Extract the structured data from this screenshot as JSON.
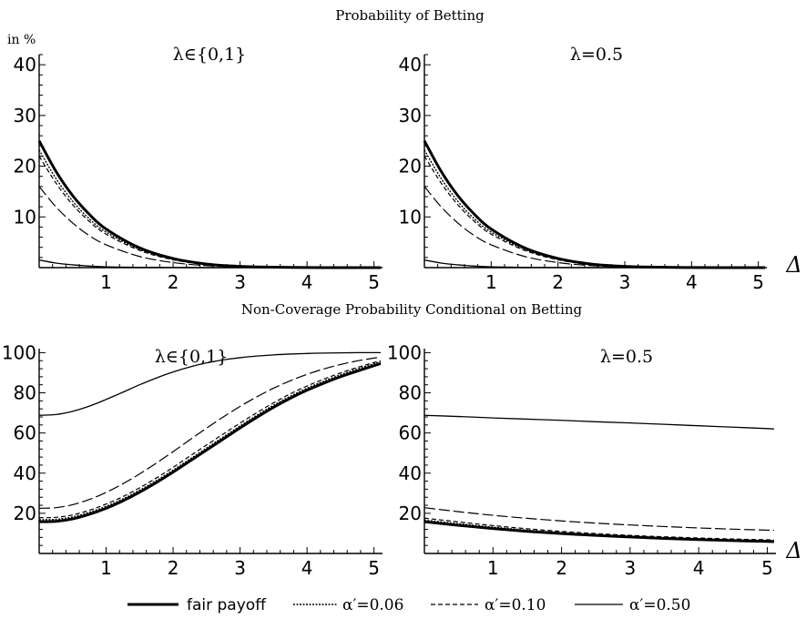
{
  "top_section_title": "Probability of Betting",
  "bottom_section_title": "Non-Coverage Probability Conditional on Betting",
  "y_unit_label": "in %",
  "x_axis_variable": "Δ",
  "legend": [
    {
      "label": "fair payoff",
      "style": "thick"
    },
    {
      "label": "α′=0.06",
      "style": "dotted"
    },
    {
      "label": "α′=0.10",
      "style": "dashed"
    },
    {
      "label": "α′=0.50",
      "style": "solid"
    }
  ],
  "chart_data": [
    {
      "type": "line",
      "title": "λ∈{0,1}",
      "xlim": [
        0,
        5.1
      ],
      "ylim": [
        0,
        42
      ],
      "xticks": [
        1,
        2,
        3,
        4,
        5
      ],
      "yticks": [
        10,
        20,
        30,
        40
      ],
      "series": [
        {
          "name": "fair payoff",
          "x": [
            0,
            0.25,
            0.5,
            0.75,
            1,
            1.5,
            2,
            2.5,
            3,
            3.5,
            4,
            4.5,
            5,
            5.1
          ],
          "y": [
            25.0,
            19.0,
            14.2,
            10.5,
            7.6,
            3.9,
            1.8,
            0.7,
            0.25,
            0.08,
            0.02,
            0.0,
            0.0,
            0.0
          ]
        },
        {
          "name": "α′=0.06",
          "x": [
            0,
            0.25,
            0.5,
            0.75,
            1,
            1.5,
            2,
            2.5,
            3,
            3.5,
            4,
            4.5,
            5,
            5.1
          ],
          "y": [
            23.2,
            17.6,
            13.1,
            9.6,
            7.0,
            3.6,
            1.65,
            0.65,
            0.22,
            0.07,
            0.02,
            0.0,
            0.0,
            0.0
          ]
        },
        {
          "name": "α′=0.10",
          "x": [
            0,
            0.25,
            0.5,
            0.75,
            1,
            1.5,
            2,
            2.5,
            3,
            3.5,
            4,
            4.5,
            5,
            5.1
          ],
          "y": [
            22.0,
            16.7,
            12.4,
            9.1,
            6.6,
            3.4,
            1.55,
            0.6,
            0.2,
            0.06,
            0.02,
            0.0,
            0.0,
            0.0
          ]
        },
        {
          "name": "α′=0.50",
          "x": [
            0,
            0.25,
            0.5,
            0.75,
            1,
            1.5,
            2,
            2.5,
            3,
            3.5,
            4,
            4.5,
            5,
            5.1
          ],
          "y": [
            16.0,
            12.0,
            8.8,
            6.3,
            4.5,
            2.2,
            1.0,
            0.4,
            0.13,
            0.04,
            0.01,
            0.0,
            0.0,
            0.0
          ]
        },
        {
          "name": "",
          "x": [
            0,
            0.25,
            0.5,
            0.75,
            1,
            1.5,
            2,
            2.5,
            3,
            3.5,
            4,
            4.5,
            5,
            5.1
          ],
          "y": [
            1.5,
            0.9,
            0.55,
            0.3,
            0.15,
            0.05,
            0.02,
            0.0,
            0.0,
            0.0,
            0.0,
            0.0,
            0.0,
            0.0
          ]
        }
      ]
    },
    {
      "type": "line",
      "title": "λ=0.5",
      "xlim": [
        0,
        5.1
      ],
      "ylim": [
        0,
        42
      ],
      "xticks": [
        1,
        2,
        3,
        4,
        5
      ],
      "yticks": [
        10,
        20,
        30,
        40
      ],
      "series": [
        {
          "name": "fair payoff",
          "x": [
            0,
            0.25,
            0.5,
            0.75,
            1,
            1.5,
            2,
            2.5,
            3,
            3.5,
            4,
            4.5,
            5,
            5.1
          ],
          "y": [
            25.0,
            19.0,
            14.2,
            10.5,
            7.6,
            3.9,
            1.8,
            0.7,
            0.25,
            0.08,
            0.02,
            0.0,
            0.0,
            0.0
          ]
        },
        {
          "name": "α′=0.06",
          "x": [
            0,
            0.25,
            0.5,
            0.75,
            1,
            1.5,
            2,
            2.5,
            3,
            3.5,
            4,
            4.5,
            5,
            5.1
          ],
          "y": [
            23.2,
            17.6,
            13.1,
            9.6,
            7.0,
            3.6,
            1.65,
            0.65,
            0.22,
            0.07,
            0.02,
            0.0,
            0.0,
            0.0
          ]
        },
        {
          "name": "α′=0.10",
          "x": [
            0,
            0.25,
            0.5,
            0.75,
            1,
            1.5,
            2,
            2.5,
            3,
            3.5,
            4,
            4.5,
            5,
            5.1
          ],
          "y": [
            22.0,
            16.7,
            12.4,
            9.1,
            6.6,
            3.4,
            1.55,
            0.6,
            0.2,
            0.06,
            0.02,
            0.0,
            0.0,
            0.0
          ]
        },
        {
          "name": "α′=0.50",
          "x": [
            0,
            0.25,
            0.5,
            0.75,
            1,
            1.5,
            2,
            2.5,
            3,
            3.5,
            4,
            4.5,
            5,
            5.1
          ],
          "y": [
            16.0,
            12.0,
            8.8,
            6.3,
            4.5,
            2.2,
            1.0,
            0.4,
            0.13,
            0.04,
            0.01,
            0.0,
            0.0,
            0.0
          ]
        },
        {
          "name": "",
          "x": [
            0,
            0.25,
            0.5,
            0.75,
            1,
            1.5,
            2,
            2.5,
            3,
            3.5,
            4,
            4.5,
            5,
            5.1
          ],
          "y": [
            1.5,
            0.9,
            0.55,
            0.3,
            0.15,
            0.05,
            0.02,
            0.0,
            0.0,
            0.0,
            0.0,
            0.0,
            0.0,
            0.0
          ]
        }
      ]
    },
    {
      "type": "line",
      "title": "λ∈{0,1}",
      "xlim": [
        0,
        5.1
      ],
      "ylim": [
        0,
        102
      ],
      "xticks": [
        1,
        2,
        3,
        4,
        5
      ],
      "yticks": [
        20,
        40,
        60,
        80,
        100
      ],
      "series": [
        {
          "name": "fair payoff",
          "x": [
            0,
            0.25,
            0.5,
            0.75,
            1,
            1.25,
            1.5,
            1.75,
            2,
            2.25,
            2.5,
            2.75,
            3,
            3.25,
            3.5,
            3.75,
            4,
            4.25,
            4.5,
            4.75,
            5,
            5.1
          ],
          "y": [
            15.8,
            16.0,
            17.2,
            19.5,
            22.5,
            26.2,
            30.5,
            35.3,
            40.5,
            46.0,
            51.5,
            57.0,
            62.5,
            67.8,
            72.8,
            77.3,
            81.3,
            84.8,
            88.0,
            90.8,
            93.5,
            94.6
          ]
        },
        {
          "name": "α′=0.06",
          "x": [
            0,
            0.25,
            0.5,
            0.75,
            1,
            1.25,
            1.5,
            1.75,
            2,
            2.25,
            2.5,
            2.75,
            3,
            3.25,
            3.5,
            3.75,
            4,
            4.25,
            4.5,
            4.75,
            5,
            5.1
          ],
          "y": [
            16.8,
            17.0,
            18.2,
            20.5,
            23.5,
            27.2,
            31.5,
            36.3,
            41.5,
            47.0,
            52.5,
            58.0,
            63.5,
            68.8,
            73.8,
            78.3,
            82.3,
            85.8,
            89.0,
            91.8,
            94.5,
            95.3
          ]
        },
        {
          "name": "α′=0.10",
          "x": [
            0,
            0.25,
            0.5,
            0.75,
            1,
            1.25,
            1.5,
            1.75,
            2,
            2.25,
            2.5,
            2.75,
            3,
            3.25,
            3.5,
            3.75,
            4,
            4.25,
            4.5,
            4.75,
            5,
            5.1
          ],
          "y": [
            17.8,
            18.0,
            19.2,
            21.5,
            24.6,
            28.3,
            32.7,
            37.6,
            42.9,
            48.5,
            54.0,
            59.5,
            64.9,
            70.1,
            75.0,
            79.5,
            83.4,
            86.8,
            89.9,
            92.6,
            95.1,
            95.9
          ]
        },
        {
          "name": "α′=0.50",
          "x": [
            0,
            0.25,
            0.5,
            0.75,
            1,
            1.25,
            1.5,
            1.75,
            2,
            2.25,
            2.5,
            2.75,
            3,
            3.25,
            3.5,
            3.75,
            4,
            4.25,
            4.5,
            4.75,
            5,
            5.1
          ],
          "y": [
            22.5,
            22.8,
            24.3,
            26.9,
            30.4,
            34.7,
            39.6,
            45.0,
            50.7,
            56.6,
            62.4,
            68.0,
            73.2,
            78.0,
            82.3,
            86.0,
            89.2,
            91.9,
            94.1,
            95.9,
            97.3,
            97.8
          ]
        },
        {
          "name": "",
          "x": [
            0,
            0.25,
            0.5,
            0.75,
            1,
            1.25,
            1.5,
            1.75,
            2,
            2.25,
            2.5,
            2.75,
            3,
            3.25,
            3.5,
            3.75,
            4,
            4.25,
            4.5,
            4.75,
            5,
            5.1
          ],
          "y": [
            68.8,
            69.2,
            70.8,
            73.4,
            76.7,
            80.3,
            84.0,
            87.4,
            90.4,
            92.9,
            94.9,
            96.4,
            97.5,
            98.3,
            98.9,
            99.3,
            99.6,
            99.8,
            99.9,
            100.0,
            100.0,
            100.0
          ]
        }
      ]
    },
    {
      "type": "line",
      "title": "λ=0.5",
      "xlim": [
        0,
        5.1
      ],
      "ylim": [
        0,
        102
      ],
      "xticks": [
        1,
        2,
        3,
        4,
        5
      ],
      "yticks": [
        20,
        40,
        60,
        80,
        100
      ],
      "series": [
        {
          "name": "fair payoff",
          "x": [
            0,
            0.5,
            1,
            1.5,
            2,
            2.5,
            3,
            3.5,
            4,
            4.5,
            5,
            5.1
          ],
          "y": [
            15.8,
            14.0,
            12.4,
            11.0,
            9.9,
            9.0,
            8.2,
            7.5,
            6.9,
            6.4,
            6.0,
            5.9
          ]
        },
        {
          "name": "α′=0.06",
          "x": [
            0,
            0.5,
            1,
            1.5,
            2,
            2.5,
            3,
            3.5,
            4,
            4.5,
            5,
            5.1
          ],
          "y": [
            16.6,
            14.8,
            13.1,
            11.6,
            10.4,
            9.4,
            8.6,
            7.9,
            7.3,
            6.8,
            6.4,
            6.3
          ]
        },
        {
          "name": "α′=0.10",
          "x": [
            0,
            0.5,
            1,
            1.5,
            2,
            2.5,
            3,
            3.5,
            4,
            4.5,
            5,
            5.1
          ],
          "y": [
            17.6,
            15.7,
            13.9,
            12.3,
            11.0,
            9.9,
            9.0,
            8.3,
            7.7,
            7.2,
            6.8,
            6.7
          ]
        },
        {
          "name": "α′=0.50",
          "x": [
            0,
            0.5,
            1,
            1.5,
            2,
            2.5,
            3,
            3.5,
            4,
            4.5,
            5,
            5.1
          ],
          "y": [
            22.8,
            20.8,
            19.0,
            17.5,
            16.2,
            15.1,
            14.2,
            13.4,
            12.7,
            12.1,
            11.6,
            11.5
          ]
        },
        {
          "name": "",
          "x": [
            0,
            0.5,
            1,
            1.5,
            2,
            2.5,
            3,
            3.5,
            4,
            4.5,
            5,
            5.1
          ],
          "y": [
            68.8,
            68.2,
            67.5,
            66.9,
            66.3,
            65.6,
            65.0,
            64.3,
            63.6,
            62.9,
            62.2,
            62.0
          ]
        }
      ]
    }
  ]
}
